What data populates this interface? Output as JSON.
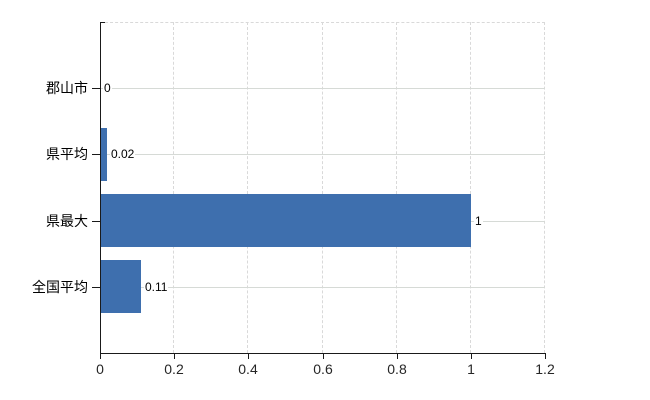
{
  "chart_data": {
    "type": "bar",
    "orientation": "horizontal",
    "title": "",
    "categories": [
      "郡山市",
      "県平均",
      "県最大",
      "全国平均"
    ],
    "values": [
      0,
      0.02,
      1,
      0.11
    ],
    "value_labels": [
      "0",
      "0.02",
      "1",
      "0.11"
    ],
    "x_ticks": [
      0,
      0.2,
      0.4,
      0.6,
      0.8,
      1,
      1.2
    ],
    "x_tick_labels": [
      "0",
      "0.2",
      "0.4",
      "0.6",
      "0.8",
      "1",
      "1.2"
    ],
    "xlim": [
      0,
      1.2
    ],
    "grid": true,
    "legend": false,
    "colors": {
      "bar": "#3e6fae",
      "axis": "#1a1a1a",
      "gridline_vertical": "#d9d9d9",
      "gridline_horizontal": "#d6dad6",
      "text": "#000000"
    }
  }
}
